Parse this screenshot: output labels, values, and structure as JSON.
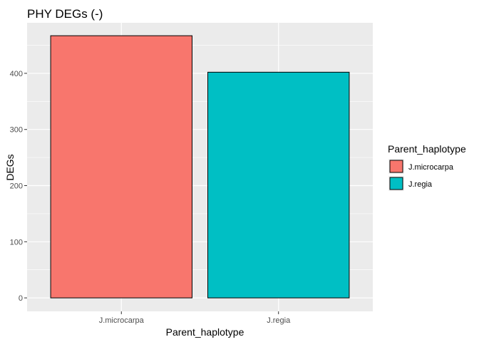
{
  "chart_data": {
    "type": "bar",
    "title": "PHY DEGs (-)",
    "xlabel": "Parent_haplotype",
    "ylabel": "DEGs",
    "categories": [
      "J.microcarpa",
      "J.regia"
    ],
    "values": [
      467,
      402
    ],
    "colors": [
      "#F8766D",
      "#00BFC4"
    ],
    "ylim": [
      -24,
      490
    ],
    "yticks": [
      0,
      100,
      200,
      300,
      400
    ],
    "grid": true,
    "legend": {
      "title": "Parent_haplotype",
      "placement": "right",
      "entries": [
        "J.microcarpa",
        "J.regia"
      ]
    }
  }
}
